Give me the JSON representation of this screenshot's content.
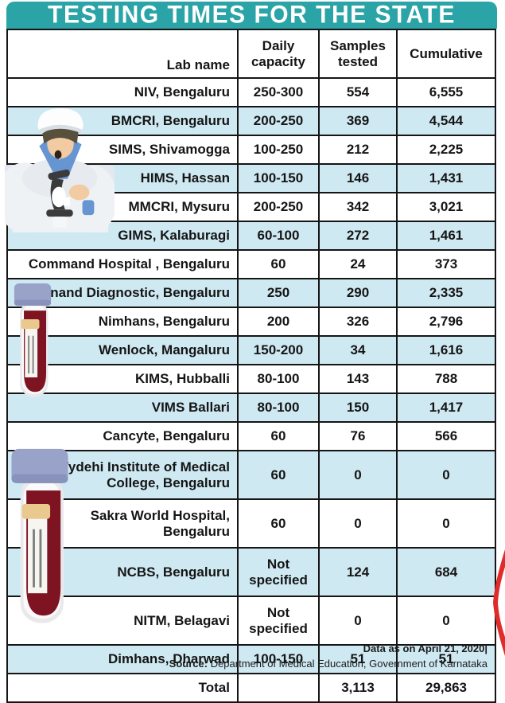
{
  "title": "TESTING TIMES FOR THE STATE",
  "chart_data": {
    "type": "table",
    "title": "TESTING TIMES FOR THE STATE",
    "columns": [
      "Lab name",
      "Daily capacity",
      "Samples tested",
      "Cumulative"
    ],
    "fields": [
      "lab",
      "capacity",
      "tested",
      "cumulative"
    ],
    "rows": [
      {
        "lab": "NIV, Bengaluru",
        "capacity": "250-300",
        "tested": "554",
        "cumulative": "6,555",
        "shaded": false
      },
      {
        "lab": "BMCRI, Bengaluru",
        "capacity": "200-250",
        "tested": "369",
        "cumulative": "4,544",
        "shaded": true
      },
      {
        "lab": "SIMS, Shivamogga",
        "capacity": "100-250",
        "tested": "212",
        "cumulative": "2,225",
        "shaded": false
      },
      {
        "lab": "HIMS, Hassan",
        "capacity": "100-150",
        "tested": "146",
        "cumulative": "1,431",
        "shaded": true
      },
      {
        "lab": "MMCRI, Mysuru",
        "capacity": "200-250",
        "tested": "342",
        "cumulative": "3,021",
        "shaded": false
      },
      {
        "lab": "GIMS, Kalaburagi",
        "capacity": "60-100",
        "tested": "272",
        "cumulative": "1,461",
        "shaded": true
      },
      {
        "lab": "Command Hospital , Bengaluru",
        "capacity": "60",
        "tested": "24",
        "cumulative": "373",
        "shaded": false
      },
      {
        "lab": "Anand Diagnostic, Bengaluru",
        "capacity": "250",
        "tested": "290",
        "cumulative": "2,335",
        "shaded": true
      },
      {
        "lab": "Nimhans, Bengaluru",
        "capacity": "200",
        "tested": "326",
        "cumulative": "2,796",
        "shaded": false
      },
      {
        "lab": "Wenlock, Mangaluru",
        "capacity": "150-200",
        "tested": "34",
        "cumulative": "1,616",
        "shaded": true
      },
      {
        "lab": "KIMS, Hubballi",
        "capacity": "80-100",
        "tested": "143",
        "cumulative": "788",
        "shaded": false
      },
      {
        "lab": "VIMS Ballari",
        "capacity": "80-100",
        "tested": "150",
        "cumulative": "1,417",
        "shaded": true
      },
      {
        "lab": "Cancyte, Bengaluru",
        "capacity": "60",
        "tested": "76",
        "cumulative": "566",
        "shaded": false
      },
      {
        "lab": "Vydehi Institute of Medical\nCollege, Bengaluru",
        "capacity": "60",
        "tested": "0",
        "cumulative": "0",
        "shaded": true,
        "tall": true
      },
      {
        "lab": "Sakra World Hospital,\nBengaluru",
        "capacity": "60",
        "tested": "0",
        "cumulative": "0",
        "shaded": false,
        "tall": true
      },
      {
        "lab": "NCBS, Bengaluru",
        "capacity": "Not\nspecified",
        "tested": "124",
        "cumulative": "684",
        "shaded": true,
        "tall": true
      },
      {
        "lab": "NITM, Belagavi",
        "capacity": "Not\nspecified",
        "tested": "0",
        "cumulative": "0",
        "shaded": false,
        "tall": true
      },
      {
        "lab": "Dimhans, Dharwad",
        "capacity": "100-150",
        "tested": "51",
        "cumulative": "51",
        "shaded": true
      },
      {
        "lab": "Total",
        "capacity": "",
        "tested": "3,113",
        "cumulative": "29,863",
        "shaded": false,
        "total": true
      }
    ]
  },
  "footer": {
    "line1": "Data as on April 21, 2020|",
    "source_label": "Source:",
    "source_text": " Department of Medical Education, Government of Karnataka"
  },
  "colors": {
    "accent_teal": "#2ba4a8",
    "row_stripe_blue": "#cfe9f2",
    "border_black": "#151515",
    "blood_red": "#7e1322",
    "vial_cap_lavender": "#99a2c9",
    "label_tan": "#eac98f",
    "scrub_blue": "#6695d2",
    "skin": "#f2cba3",
    "edge_red": "#e02b2b"
  },
  "illustrations": [
    "scientist-with-microscope",
    "blood-sample-vial-small",
    "blood-sample-vial-large",
    "red-ribbon-edge"
  ]
}
